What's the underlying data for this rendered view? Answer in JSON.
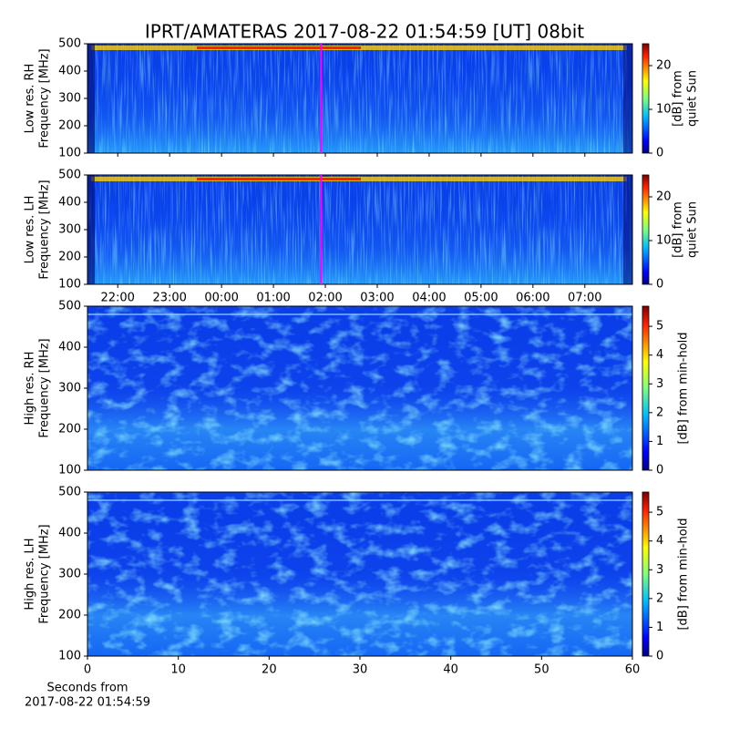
{
  "chart_data": [
    {
      "type": "heatmap",
      "title": "IPRT/AMATERAS 2017-08-22 01:54:59 [UT]   08bit",
      "ylabel": [
        "Low res. RH",
        "Frequency [MHz]"
      ],
      "ylim": [
        100,
        500
      ],
      "yticks": [
        100,
        200,
        300,
        400,
        500
      ],
      "xlim": [
        "21:25",
        "07:55"
      ],
      "marker_time": "01:54:59",
      "marker_color": "#ff00ff",
      "colorbar_label": [
        "[dB] from",
        "quiet Sun"
      ],
      "clim": [
        0,
        25
      ],
      "cticks": [
        0,
        10,
        20
      ],
      "colormap": "jet"
    },
    {
      "type": "heatmap",
      "ylabel": [
        "Low res. LH",
        "Frequency [MHz]"
      ],
      "ylim": [
        100,
        500
      ],
      "yticks": [
        100,
        200,
        300,
        400,
        500
      ],
      "xlim": [
        "21:25",
        "07:55"
      ],
      "xticks": [
        "22:00",
        "23:00",
        "00:00",
        "01:00",
        "02:00",
        "03:00",
        "04:00",
        "05:00",
        "06:00",
        "07:00"
      ],
      "marker_time": "01:54:59",
      "marker_color": "#ff00ff",
      "colorbar_label": [
        "[dB] from",
        "quiet Sun"
      ],
      "clim": [
        0,
        25
      ],
      "cticks": [
        0,
        10,
        20
      ],
      "colormap": "jet"
    },
    {
      "type": "heatmap",
      "ylabel": [
        "High res. RH",
        "Frequency [MHz]"
      ],
      "ylim": [
        100,
        500
      ],
      "yticks": [
        100,
        200,
        300,
        400,
        500
      ],
      "xlim": [
        0,
        60
      ],
      "colorbar_label": [
        "[dB] from min-hold"
      ],
      "clim": [
        0,
        5.7
      ],
      "cticks": [
        0,
        1,
        2,
        3,
        4,
        5
      ],
      "colormap": "jet"
    },
    {
      "type": "heatmap",
      "ylabel": [
        "High res. LH",
        "Frequency [MHz]"
      ],
      "ylim": [
        100,
        500
      ],
      "yticks": [
        100,
        200,
        300,
        400,
        500
      ],
      "xlim": [
        0,
        60
      ],
      "xticks": [
        0,
        10,
        20,
        30,
        40,
        50,
        60
      ],
      "xlabel": [
        "Seconds from",
        "2017-08-22 01:54:59"
      ],
      "colorbar_label": [
        "[dB] from min-hold"
      ],
      "clim": [
        0,
        5.7
      ],
      "cticks": [
        0,
        1,
        2,
        3,
        4,
        5
      ],
      "colormap": "jet"
    }
  ]
}
